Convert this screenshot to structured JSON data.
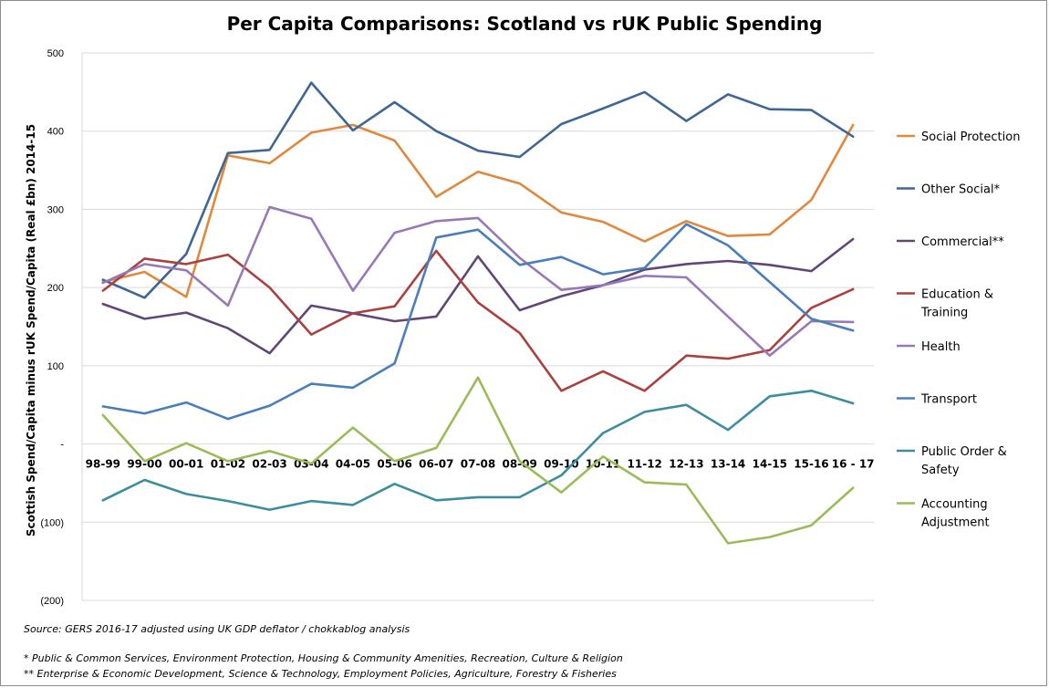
{
  "chart_data": {
    "type": "line",
    "title": "Per Capita Comparisons: Scotland vs rUK Public Spending",
    "xlabel": "",
    "ylabel": "Scottish Spend/Capita minus  rUK Spend/Capita (Real £bn) 2014-15",
    "ylim": [
      -200,
      500
    ],
    "y_ticks": [
      {
        "value": 500,
        "label": "500"
      },
      {
        "value": 400,
        "label": "400"
      },
      {
        "value": 300,
        "label": "300"
      },
      {
        "value": 200,
        "label": "200"
      },
      {
        "value": 100,
        "label": "100"
      },
      {
        "value": 0,
        "label": "-"
      },
      {
        "value": -100,
        "label": "(100)"
      },
      {
        "value": -200,
        "label": "(200)"
      }
    ],
    "grid": "horizontal",
    "legend_position": "right",
    "categories": [
      "98-99",
      "99-00",
      "00-01",
      "01-02",
      "02-03",
      "03-04",
      "04-05",
      "05-06",
      "06-07",
      "07-08",
      "08-09",
      "09-10",
      "10-11",
      "11-12",
      "12-13",
      "13-14",
      "14-15",
      "15-16",
      "16 - 17"
    ],
    "series": [
      {
        "name": "Social Protection",
        "color": "#e0893c",
        "values": [
          207,
          220,
          188,
          369,
          359,
          398,
          408,
          388,
          316,
          348,
          333,
          296,
          284,
          259,
          285,
          266,
          268,
          312,
          408
        ]
      },
      {
        "name": "Other Social*",
        "color": "#3e6795",
        "values": [
          210,
          187,
          243,
          372,
          376,
          462,
          401,
          437,
          400,
          375,
          367,
          409,
          429,
          450,
          413,
          447,
          428,
          427,
          393
        ]
      },
      {
        "name": "Commercial**",
        "color": "#614679",
        "values": [
          179,
          160,
          168,
          148,
          116,
          177,
          167,
          157,
          163,
          240,
          171,
          189,
          203,
          223,
          230,
          234,
          229,
          221,
          262
        ]
      },
      {
        "name": "Education & Training",
        "color": "#a9423f",
        "values": [
          196,
          237,
          230,
          242,
          200,
          140,
          167,
          176,
          247,
          181,
          142,
          68,
          93,
          68,
          113,
          109,
          120,
          174,
          198
        ]
      },
      {
        "name": "Health",
        "color": "#9879b7",
        "values": [
          206,
          230,
          222,
          177,
          303,
          288,
          196,
          270,
          285,
          289,
          238,
          197,
          203,
          215,
          213,
          163,
          113,
          157,
          156
        ]
      },
      {
        "name": "Transport",
        "color": "#4a7ebb",
        "values": [
          48,
          39,
          53,
          32,
          49,
          77,
          72,
          103,
          264,
          274,
          229,
          239,
          217,
          225,
          281,
          254,
          207,
          160,
          145
        ]
      },
      {
        "name": "Public Order & Safety",
        "color": "#3c8e9f",
        "values": [
          -72,
          -46,
          -64,
          -73,
          -84,
          -73,
          -78,
          -51,
          -72,
          -68,
          -68,
          -40,
          14,
          41,
          50,
          18,
          61,
          68,
          52
        ]
      },
      {
        "name": "Accounting Adjustment",
        "color": "#9bbb59",
        "values": [
          37,
          -22,
          1,
          -22,
          -9,
          -25,
          21,
          -22,
          -5,
          85,
          -22,
          -62,
          -16,
          -49,
          -52,
          -127,
          -119,
          -104,
          -56
        ]
      }
    ],
    "legend_lines": [
      [
        "Social Protection"
      ],
      [
        "Other Social*"
      ],
      [
        "Commercial**"
      ],
      [
        "Education &",
        "Training"
      ],
      [
        "Health"
      ],
      [
        "Transport"
      ],
      [
        "Public Order &",
        "Safety"
      ],
      [
        "Accounting",
        "Adjustment"
      ]
    ]
  },
  "notes": {
    "source": "Source:  GERS 2016-17 adjusted using UK GDP deflator / chokkablog analysis",
    "footnote1": "* Public & Common Services, Environment Protection, Housing & Community Amenities, Recreation,  Culture & Religion",
    "footnote2": "** Enterprise  & Economic Development, Science & Technology, Employment Policies, Agriculture,  Forestry & Fisheries"
  }
}
